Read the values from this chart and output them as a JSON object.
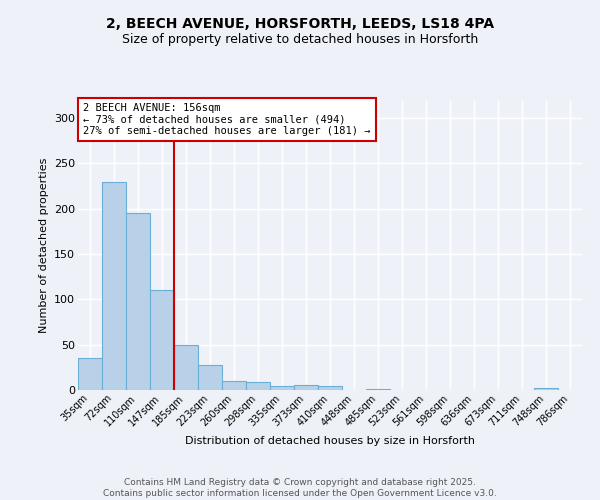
{
  "title1": "2, BEECH AVENUE, HORSFORTH, LEEDS, LS18 4PA",
  "title2": "Size of property relative to detached houses in Horsforth",
  "xlabel": "Distribution of detached houses by size in Horsforth",
  "ylabel": "Number of detached properties",
  "categories": [
    "35sqm",
    "72sqm",
    "110sqm",
    "147sqm",
    "185sqm",
    "223sqm",
    "260sqm",
    "298sqm",
    "335sqm",
    "373sqm",
    "410sqm",
    "448sqm",
    "485sqm",
    "523sqm",
    "561sqm",
    "598sqm",
    "636sqm",
    "673sqm",
    "711sqm",
    "748sqm",
    "786sqm"
  ],
  "values": [
    35,
    230,
    195,
    110,
    50,
    28,
    10,
    9,
    4,
    5,
    4,
    0,
    1,
    0,
    0,
    0,
    0,
    0,
    0,
    2,
    0
  ],
  "bar_color": "#b8d0e8",
  "bar_edge_color": "#6baed6",
  "vline_color": "#cc0000",
  "annotation_title": "2 BEECH AVENUE: 156sqm",
  "annotation_line1": "← 73% of detached houses are smaller (494)",
  "annotation_line2": "27% of semi-detached houses are larger (181) →",
  "annotation_box_facecolor": "white",
  "annotation_box_edgecolor": "#cc0000",
  "annotation_text_color": "black",
  "ylim": [
    0,
    320
  ],
  "yticks": [
    0,
    50,
    100,
    150,
    200,
    250,
    300
  ],
  "footnote1": "Contains HM Land Registry data © Crown copyright and database right 2025.",
  "footnote2": "Contains public sector information licensed under the Open Government Licence v3.0.",
  "bg_color": "#eef2f8",
  "plot_bg_color": "#eef2f8",
  "grid_color": "white",
  "title1_fontsize": 10,
  "title2_fontsize": 9
}
